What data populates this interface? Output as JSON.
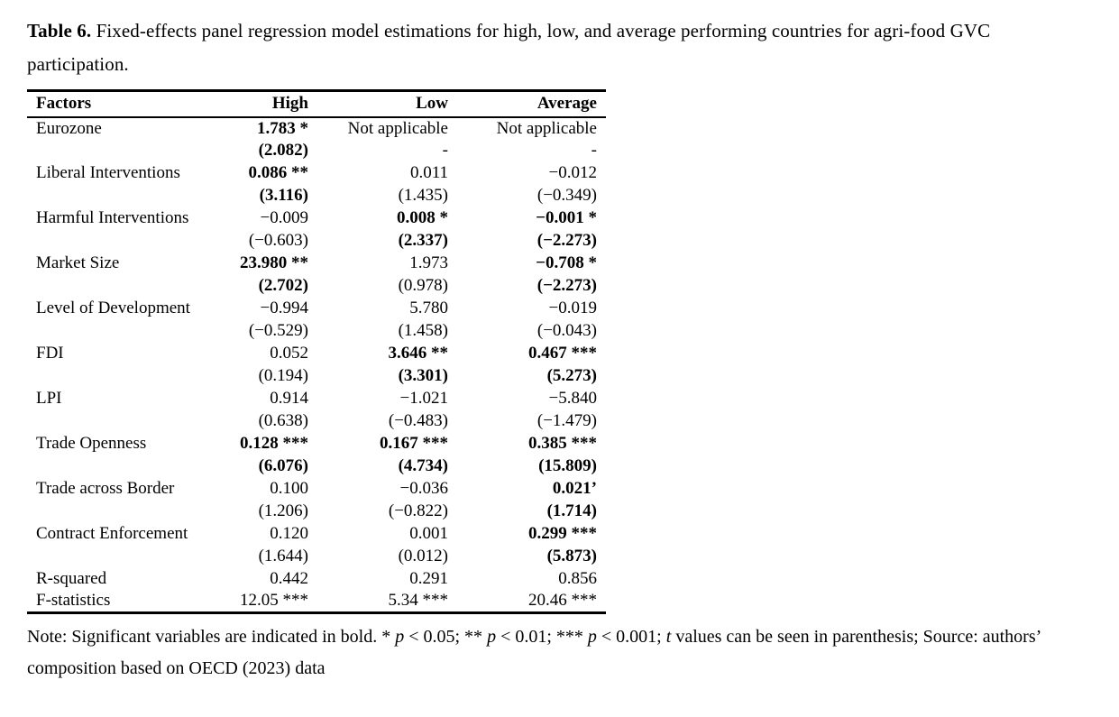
{
  "title_segments": [
    {
      "text": "Table 6.",
      "bold": true,
      "italic": false
    },
    {
      "text": " Fixed-effects panel regression model estimations for high, low, and average performing countries for agri-food GVC participation.",
      "bold": false,
      "italic": false
    }
  ],
  "table": {
    "columns": [
      "Factors",
      "High",
      "Low",
      "Average"
    ],
    "rows": [
      {
        "cells": [
          {
            "t": "Eurozone",
            "b": false
          },
          {
            "t": "1.783 *",
            "b": true
          },
          {
            "t": "Not applicable",
            "b": false
          },
          {
            "t": "Not applicable",
            "b": false
          }
        ]
      },
      {
        "cells": [
          {
            "t": "",
            "b": false
          },
          {
            "t": "(2.082)",
            "b": true
          },
          {
            "t": "-",
            "b": false
          },
          {
            "t": "-",
            "b": false
          }
        ]
      },
      {
        "cells": [
          {
            "t": "Liberal Interventions",
            "b": false
          },
          {
            "t": "0.086 **",
            "b": true
          },
          {
            "t": "0.011",
            "b": false
          },
          {
            "t": "−0.012",
            "b": false
          }
        ]
      },
      {
        "cells": [
          {
            "t": "",
            "b": false
          },
          {
            "t": "(3.116)",
            "b": true
          },
          {
            "t": "(1.435)",
            "b": false
          },
          {
            "t": "(−0.349)",
            "b": false
          }
        ]
      },
      {
        "cells": [
          {
            "t": "Harmful Interventions",
            "b": false
          },
          {
            "t": "−0.009",
            "b": false
          },
          {
            "t": "0.008 *",
            "b": true
          },
          {
            "t": "−0.001 *",
            "b": true
          }
        ]
      },
      {
        "cells": [
          {
            "t": "",
            "b": false
          },
          {
            "t": "(−0.603)",
            "b": false
          },
          {
            "t": "(2.337)",
            "b": true
          },
          {
            "t": "(−2.273)",
            "b": true
          }
        ]
      },
      {
        "cells": [
          {
            "t": "Market Size",
            "b": false
          },
          {
            "t": "23.980 **",
            "b": true
          },
          {
            "t": "1.973",
            "b": false
          },
          {
            "t": "−0.708 *",
            "b": true
          }
        ]
      },
      {
        "cells": [
          {
            "t": "",
            "b": false
          },
          {
            "t": "(2.702)",
            "b": true
          },
          {
            "t": "(0.978)",
            "b": false
          },
          {
            "t": "(−2.273)",
            "b": true
          }
        ]
      },
      {
        "cells": [
          {
            "t": "Level of Development",
            "b": false
          },
          {
            "t": "−0.994",
            "b": false
          },
          {
            "t": "5.780",
            "b": false
          },
          {
            "t": "−0.019",
            "b": false
          }
        ]
      },
      {
        "cells": [
          {
            "t": "",
            "b": false
          },
          {
            "t": "(−0.529)",
            "b": false
          },
          {
            "t": "(1.458)",
            "b": false
          },
          {
            "t": "(−0.043)",
            "b": false
          }
        ]
      },
      {
        "cells": [
          {
            "t": "FDI",
            "b": false
          },
          {
            "t": "0.052",
            "b": false
          },
          {
            "t": "3.646 **",
            "b": true
          },
          {
            "t": "0.467 ***",
            "b": true
          }
        ]
      },
      {
        "cells": [
          {
            "t": "",
            "b": false
          },
          {
            "t": "(0.194)",
            "b": false
          },
          {
            "t": "(3.301)",
            "b": true
          },
          {
            "t": "(5.273)",
            "b": true
          }
        ]
      },
      {
        "cells": [
          {
            "t": "LPI",
            "b": false
          },
          {
            "t": "0.914",
            "b": false
          },
          {
            "t": "−1.021",
            "b": false
          },
          {
            "t": "−5.840",
            "b": false
          }
        ]
      },
      {
        "cells": [
          {
            "t": "",
            "b": false
          },
          {
            "t": "(0.638)",
            "b": false
          },
          {
            "t": "(−0.483)",
            "b": false
          },
          {
            "t": "(−1.479)",
            "b": false
          }
        ]
      },
      {
        "cells": [
          {
            "t": "Trade Openness",
            "b": false
          },
          {
            "t": "0.128 ***",
            "b": true
          },
          {
            "t": "0.167 ***",
            "b": true
          },
          {
            "t": "0.385 ***",
            "b": true
          }
        ]
      },
      {
        "cells": [
          {
            "t": "",
            "b": false
          },
          {
            "t": "(6.076)",
            "b": true
          },
          {
            "t": "(4.734)",
            "b": true
          },
          {
            "t": "(15.809)",
            "b": true
          }
        ]
      },
      {
        "cells": [
          {
            "t": "Trade across Border",
            "b": false
          },
          {
            "t": "0.100",
            "b": false
          },
          {
            "t": "−0.036",
            "b": false
          },
          {
            "t": "0.021’",
            "b": true
          }
        ]
      },
      {
        "cells": [
          {
            "t": "",
            "b": false
          },
          {
            "t": "(1.206)",
            "b": false
          },
          {
            "t": "(−0.822)",
            "b": false
          },
          {
            "t": "(1.714)",
            "b": true
          }
        ]
      },
      {
        "cells": [
          {
            "t": "Contract Enforcement",
            "b": false
          },
          {
            "t": "0.120",
            "b": false
          },
          {
            "t": "0.001",
            "b": false
          },
          {
            "t": "0.299 ***",
            "b": true
          }
        ]
      },
      {
        "cells": [
          {
            "t": "",
            "b": false
          },
          {
            "t": "(1.644)",
            "b": false
          },
          {
            "t": "(0.012)",
            "b": false
          },
          {
            "t": "(5.873)",
            "b": true
          }
        ]
      },
      {
        "cells": [
          {
            "t": "R-squared",
            "b": false
          },
          {
            "t": "0.442",
            "b": false
          },
          {
            "t": "0.291",
            "b": false
          },
          {
            "t": "0.856",
            "b": false
          }
        ]
      },
      {
        "cells": [
          {
            "t": "F-statistics",
            "b": false
          },
          {
            "t": "12.05 ***",
            "b": false
          },
          {
            "t": "5.34 ***",
            "b": false
          },
          {
            "t": "20.46 ***",
            "b": false
          }
        ]
      }
    ]
  },
  "note_segments": [
    {
      "text": "Note: Significant variables are indicated in bold. * ",
      "bold": false,
      "italic": false
    },
    {
      "text": "p",
      "bold": false,
      "italic": true
    },
    {
      "text": " < 0.05; ** ",
      "bold": false,
      "italic": false
    },
    {
      "text": "p",
      "bold": false,
      "italic": true
    },
    {
      "text": " < 0.01; *** ",
      "bold": false,
      "italic": false
    },
    {
      "text": "p",
      "bold": false,
      "italic": true
    },
    {
      "text": " < 0.001; ",
      "bold": false,
      "italic": false
    },
    {
      "text": "t",
      "bold": false,
      "italic": true
    },
    {
      "text": " values can be seen in parenthesis; Source: authors’ composition based on OECD (2023) data",
      "bold": false,
      "italic": false
    }
  ],
  "colors": {
    "text": "#000000",
    "background": "#ffffff",
    "border": "#000000"
  }
}
